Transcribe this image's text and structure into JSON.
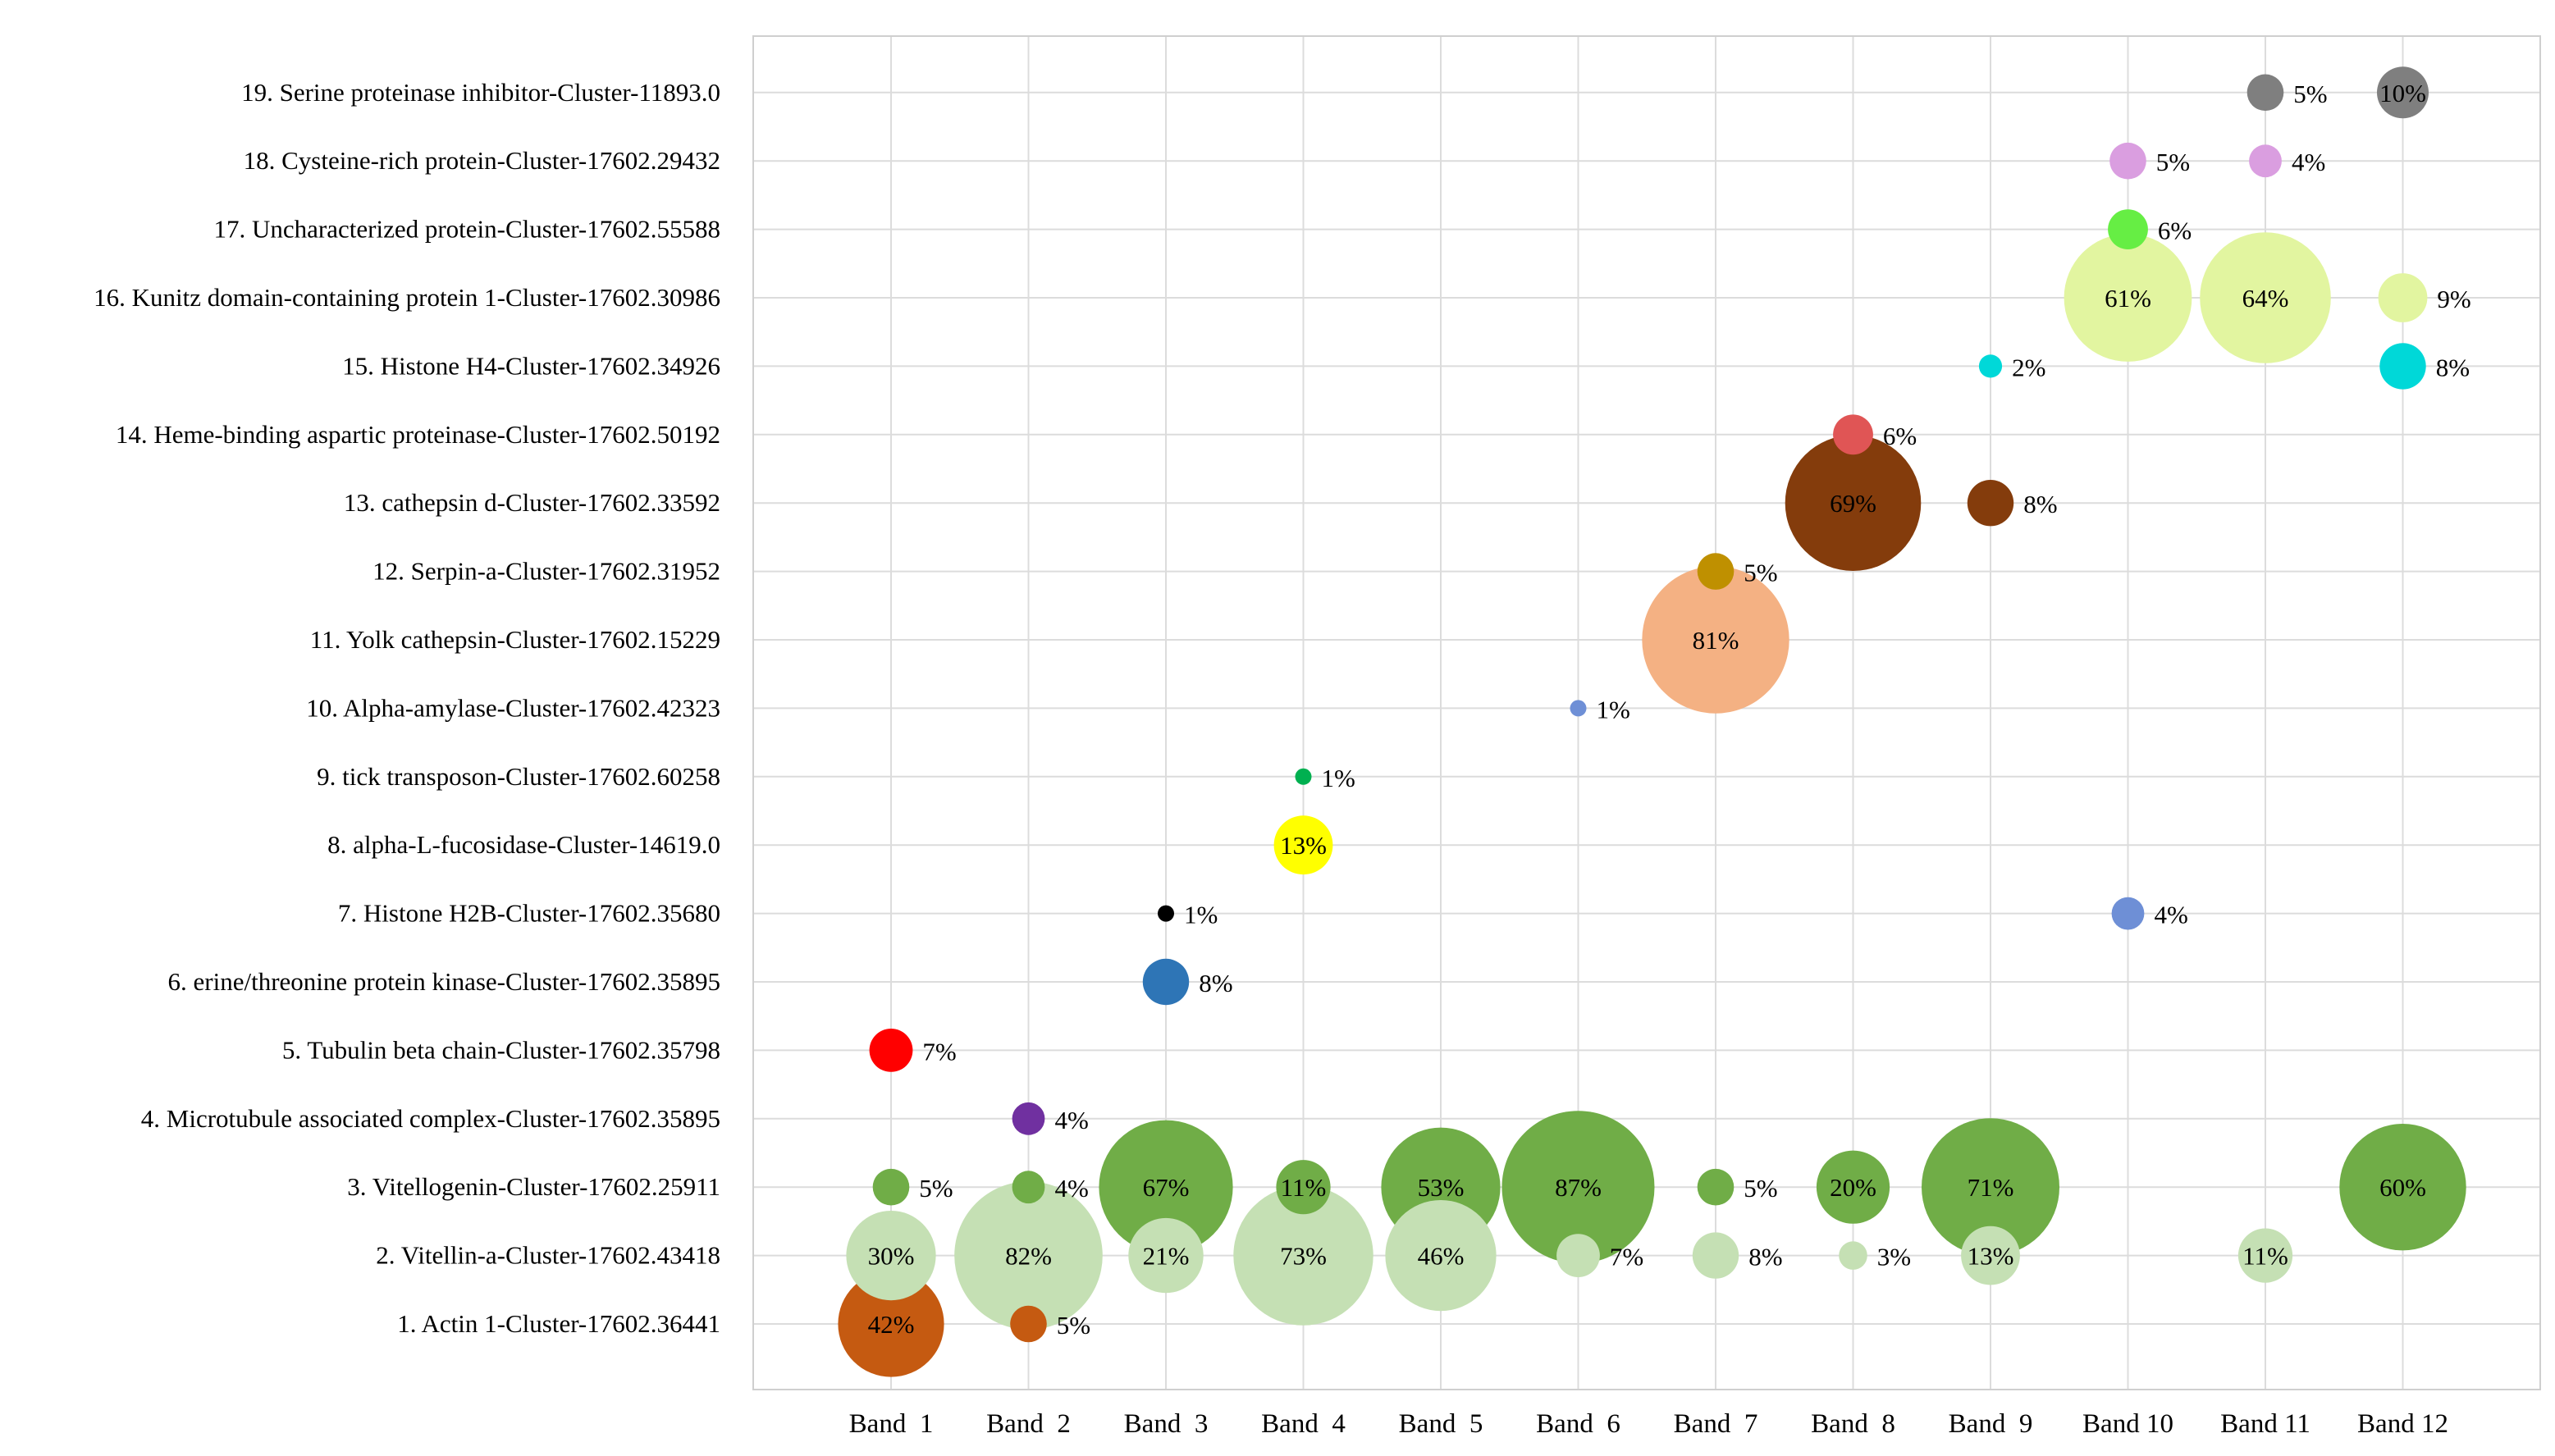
{
  "chart_data": {
    "type": "bubble",
    "title": "",
    "xlabel": "",
    "ylabel": "",
    "grid": true,
    "legend": "none",
    "bands": [
      "Band  1",
      "Band  2",
      "Band  3",
      "Band  4",
      "Band  5",
      "Band  6",
      "Band  7",
      "Band  8",
      "Band  9",
      "Band 10",
      "Band 11",
      "Band 12"
    ],
    "proteins": [
      "1. Actin 1-Cluster-17602.36441",
      "2. Vitellin-a-Cluster-17602.43418",
      "3. Vitellogenin-Cluster-17602.25911",
      "4. Microtubule associated complex-Cluster-17602.35895",
      "5. Tubulin beta chain-Cluster-17602.35798",
      "6. erine/threonine protein kinase-Cluster-17602.35895",
      "7. Histone H2B-Cluster-17602.35680",
      "8. alpha-L-fucosidase-Cluster-14619.0",
      "9. tick transposon-Cluster-17602.60258",
      "10. Alpha-amylase-Cluster-17602.42323",
      "11. Yolk cathepsin-Cluster-17602.15229",
      "12. Serpin-a-Cluster-17602.31952",
      "13. cathepsin d-Cluster-17602.33592",
      "14. Heme-binding aspartic proteinase-Cluster-17602.50192",
      "15. Histone H4-Cluster-17602.34926",
      "16. Kunitz domain-containing protein 1-Cluster-17602.30986",
      "17. Uncharacterized protein-Cluster-17602.55588",
      "18. Cysteine-rich protein-Cluster-17602.29432",
      "19. Serine proteinase inhibitor-Cluster-11893.0"
    ],
    "points": [
      {
        "protein": 1,
        "band": 1,
        "value": 42,
        "label": "42%",
        "color": "#C55A11",
        "label_pos": "inside"
      },
      {
        "protein": 1,
        "band": 2,
        "value": 5,
        "label": "5%",
        "color": "#C55A11",
        "label_pos": "right"
      },
      {
        "protein": 2,
        "band": 1,
        "value": 30,
        "label": "30%",
        "color": "#C5E0B4",
        "label_pos": "inside"
      },
      {
        "protein": 2,
        "band": 2,
        "value": 82,
        "label": "82%",
        "color": "#C5E0B4",
        "label_pos": "inside"
      },
      {
        "protein": 2,
        "band": 3,
        "value": 21,
        "label": "21%",
        "color": "#C5E0B4",
        "label_pos": "inside"
      },
      {
        "protein": 2,
        "band": 4,
        "value": 73,
        "label": "73%",
        "color": "#C5E0B4",
        "label_pos": "inside"
      },
      {
        "protein": 2,
        "band": 5,
        "value": 46,
        "label": "46%",
        "color": "#C5E0B4",
        "label_pos": "inside"
      },
      {
        "protein": 2,
        "band": 6,
        "value": 7,
        "label": "7%",
        "color": "#C5E0B4",
        "label_pos": "right"
      },
      {
        "protein": 2,
        "band": 7,
        "value": 8,
        "label": "8%",
        "color": "#C5E0B4",
        "label_pos": "right"
      },
      {
        "protein": 2,
        "band": 8,
        "value": 3,
        "label": "3%",
        "color": "#C5E0B4",
        "label_pos": "right"
      },
      {
        "protein": 2,
        "band": 9,
        "value": 13,
        "label": "13%",
        "color": "#C5E0B4",
        "label_pos": "inside"
      },
      {
        "protein": 2,
        "band": 11,
        "value": 11,
        "label": "11%",
        "color": "#C5E0B4",
        "label_pos": "inside"
      },
      {
        "protein": 3,
        "band": 1,
        "value": 5,
        "label": "5%",
        "color": "#70AD47",
        "label_pos": "right"
      },
      {
        "protein": 3,
        "band": 2,
        "value": 4,
        "label": "4%",
        "color": "#70AD47",
        "label_pos": "right"
      },
      {
        "protein": 3,
        "band": 3,
        "value": 67,
        "label": "67%",
        "color": "#70AD47",
        "label_pos": "inside"
      },
      {
        "protein": 3,
        "band": 4,
        "value": 11,
        "label": "11%",
        "color": "#70AD47",
        "label_pos": "inside"
      },
      {
        "protein": 3,
        "band": 5,
        "value": 53,
        "label": "53%",
        "color": "#70AD47",
        "label_pos": "inside"
      },
      {
        "protein": 3,
        "band": 6,
        "value": 87,
        "label": "87%",
        "color": "#70AD47",
        "label_pos": "inside"
      },
      {
        "protein": 3,
        "band": 7,
        "value": 5,
        "label": "5%",
        "color": "#70AD47",
        "label_pos": "right"
      },
      {
        "protein": 3,
        "band": 8,
        "value": 20,
        "label": "20%",
        "color": "#70AD47",
        "label_pos": "inside"
      },
      {
        "protein": 3,
        "band": 9,
        "value": 71,
        "label": "71%",
        "color": "#70AD47",
        "label_pos": "inside"
      },
      {
        "protein": 3,
        "band": 12,
        "value": 60,
        "label": "60%",
        "color": "#70AD47",
        "label_pos": "inside"
      },
      {
        "protein": 4,
        "band": 2,
        "value": 4,
        "label": "4%",
        "color": "#7030A0",
        "label_pos": "right"
      },
      {
        "protein": 5,
        "band": 1,
        "value": 7,
        "label": "7%",
        "color": "#FF0000",
        "label_pos": "right"
      },
      {
        "protein": 6,
        "band": 3,
        "value": 8,
        "label": "8%",
        "color": "#2E75B6",
        "label_pos": "right"
      },
      {
        "protein": 7,
        "band": 3,
        "value": 1,
        "label": "1%",
        "color": "#000000",
        "label_pos": "right"
      },
      {
        "protein": 7,
        "band": 10,
        "value": 4,
        "label": "4%",
        "color": "#6E8FD6",
        "label_pos": "right"
      },
      {
        "protein": 8,
        "band": 4,
        "value": 13,
        "label": "13%",
        "color": "#FFFF00",
        "label_pos": "inside"
      },
      {
        "protein": 9,
        "band": 4,
        "value": 1,
        "label": "1%",
        "color": "#00B050",
        "label_pos": "right"
      },
      {
        "protein": 10,
        "band": 6,
        "value": 1,
        "label": "1%",
        "color": "#6E8FD6",
        "label_pos": "right"
      },
      {
        "protein": 11,
        "band": 7,
        "value": 81,
        "label": "81%",
        "color": "#F4B183",
        "label_pos": "inside"
      },
      {
        "protein": 12,
        "band": 7,
        "value": 5,
        "label": "5%",
        "color": "#BF9000",
        "label_pos": "right"
      },
      {
        "protein": 13,
        "band": 8,
        "value": 69,
        "label": "69%",
        "color": "#843C0C",
        "label_pos": "inside"
      },
      {
        "protein": 13,
        "band": 9,
        "value": 8,
        "label": "8%",
        "color": "#843C0C",
        "label_pos": "right"
      },
      {
        "protein": 14,
        "band": 8,
        "value": 6,
        "label": "6%",
        "color": "#E05555",
        "label_pos": "right"
      },
      {
        "protein": 15,
        "band": 9,
        "value": 2,
        "label": "2%",
        "color": "#00D8D8",
        "label_pos": "right"
      },
      {
        "protein": 15,
        "band": 12,
        "value": 8,
        "label": "8%",
        "color": "#00D8D8",
        "label_pos": "right"
      },
      {
        "protein": 16,
        "band": 10,
        "value": 61,
        "label": "61%",
        "color": "#E2F5A0",
        "label_pos": "inside"
      },
      {
        "protein": 16,
        "band": 11,
        "value": 64,
        "label": "64%",
        "color": "#E2F5A0",
        "label_pos": "inside"
      },
      {
        "protein": 16,
        "band": 12,
        "value": 9,
        "label": "9%",
        "color": "#E2F5A0",
        "label_pos": "right"
      },
      {
        "protein": 17,
        "band": 10,
        "value": 6,
        "label": "6%",
        "color": "#66EE44",
        "label_pos": "right"
      },
      {
        "protein": 18,
        "band": 10,
        "value": 5,
        "label": "5%",
        "color": "#DA9EE0",
        "label_pos": "right"
      },
      {
        "protein": 18,
        "band": 11,
        "value": 4,
        "label": "4%",
        "color": "#DA9EE0",
        "label_pos": "right"
      },
      {
        "protein": 19,
        "band": 11,
        "value": 5,
        "label": "5%",
        "color": "#7F7F7F",
        "label_pos": "right"
      },
      {
        "protein": 19,
        "band": 12,
        "value": 10,
        "label": "10%",
        "color": "#7F7F7F",
        "label_pos": "inside"
      }
    ]
  }
}
